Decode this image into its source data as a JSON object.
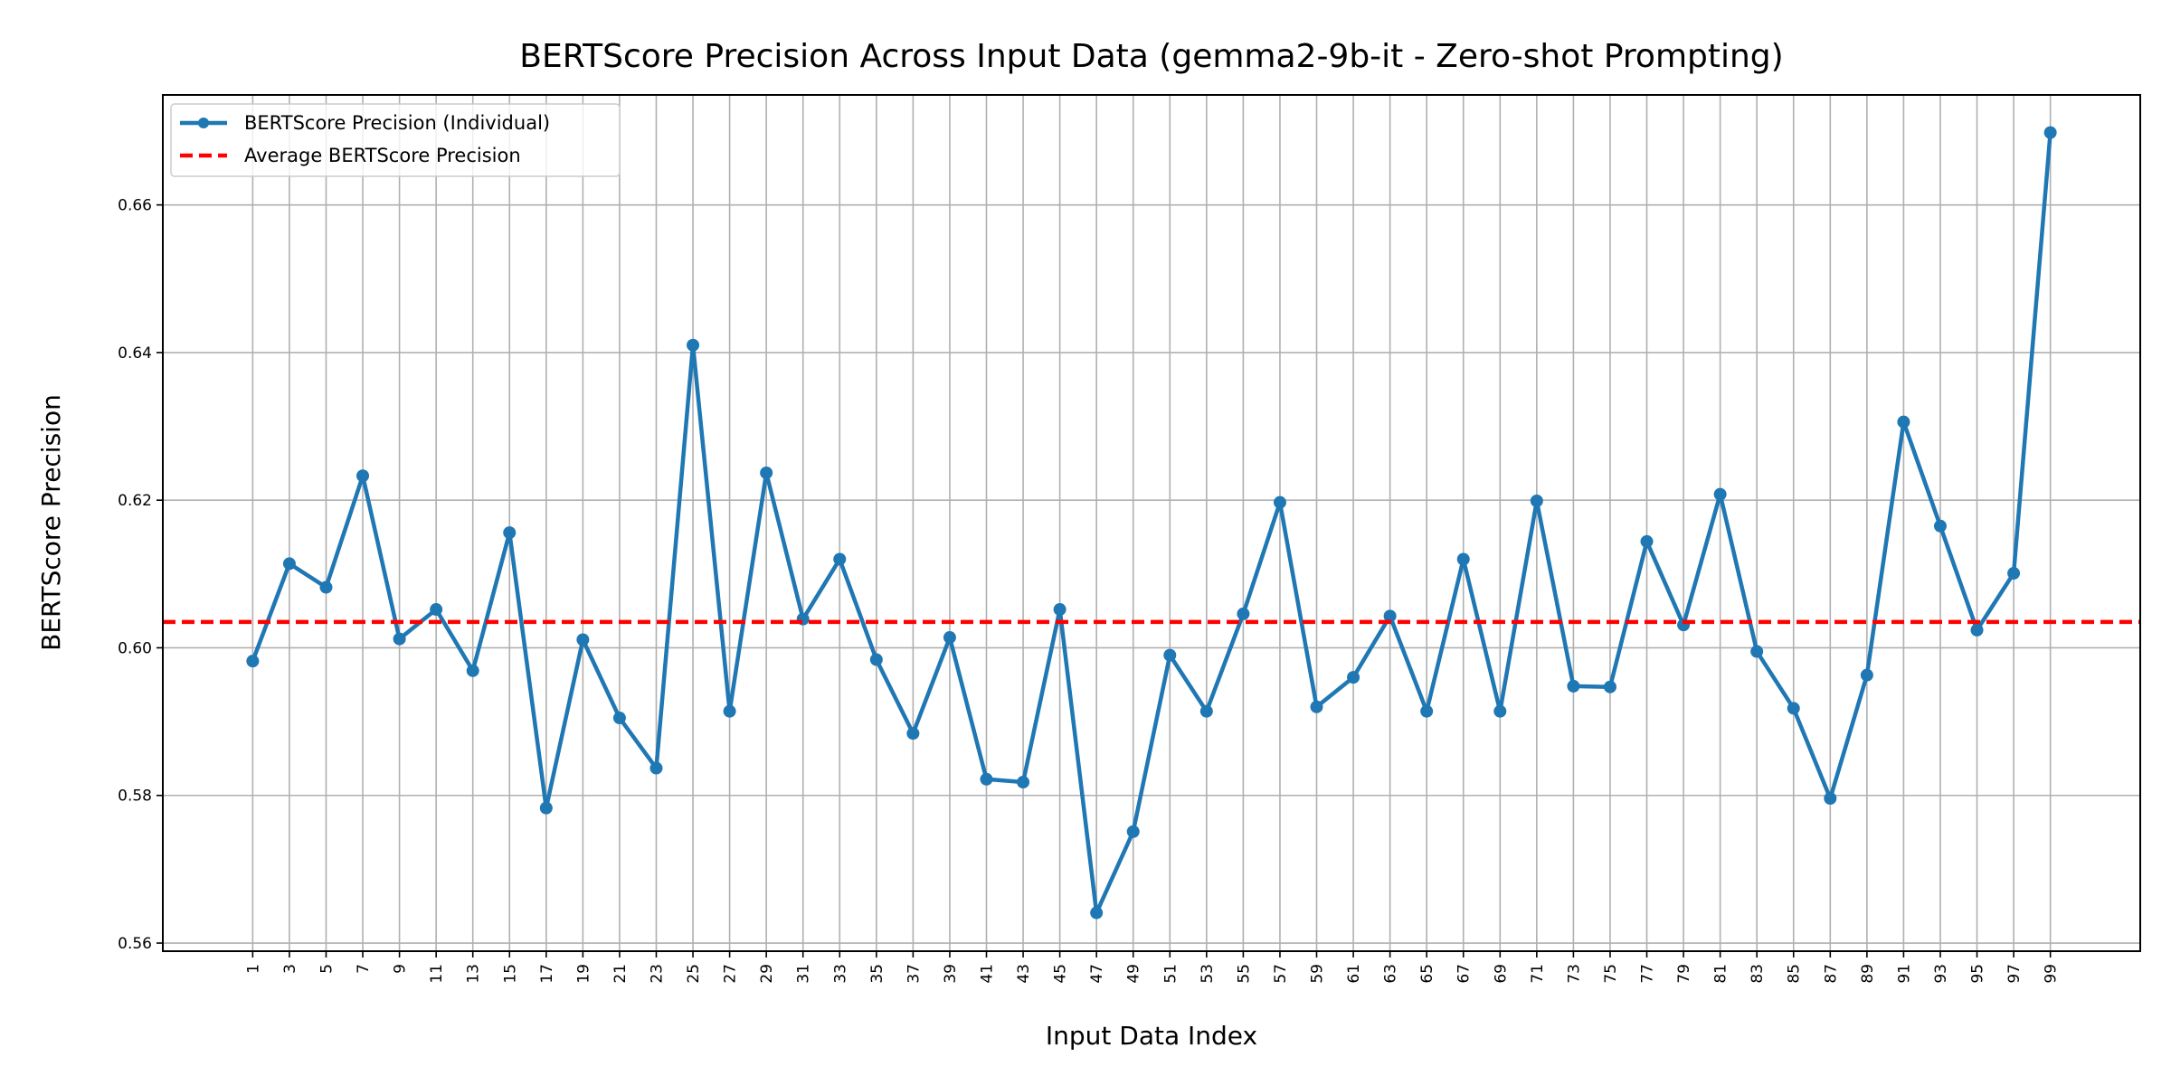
{
  "chart_data": {
    "type": "line",
    "title": "BERTScore Precision Across Input Data (gemma2-9b-it - Zero-shot Prompting)",
    "xlabel": "Input Data Index",
    "ylabel": "BERTScore Precision",
    "x": [
      1,
      3,
      5,
      7,
      9,
      11,
      13,
      15,
      17,
      19,
      21,
      23,
      25,
      27,
      29,
      31,
      33,
      35,
      37,
      39,
      41,
      43,
      45,
      47,
      49,
      51,
      53,
      55,
      57,
      59,
      61,
      63,
      65,
      67,
      69,
      71,
      73,
      75,
      77,
      79,
      81,
      83,
      85,
      87,
      89,
      91,
      93,
      95,
      97,
      99
    ],
    "series": [
      {
        "name": "BERTScore Precision (Individual)",
        "color": "#1f77b4",
        "values": [
          0.5982,
          0.6114,
          0.6082,
          0.6233,
          0.6012,
          0.6052,
          0.5969,
          0.6156,
          0.5783,
          0.6011,
          0.5905,
          0.5837,
          0.641,
          0.5914,
          0.6237,
          0.6039,
          0.612,
          0.5984,
          0.5884,
          0.6014,
          0.5822,
          0.5818,
          0.6052,
          0.5641,
          0.5751,
          0.599,
          0.5914,
          0.6046,
          0.6197,
          0.592,
          0.596,
          0.6043,
          0.5914,
          0.612,
          0.5914,
          0.6199,
          0.5948,
          0.5947,
          0.6144,
          0.6031,
          0.6208,
          0.5995,
          0.5918,
          0.5796,
          0.5963,
          0.6306,
          0.6165,
          0.6024,
          0.6101,
          0.6698
        ]
      }
    ],
    "average": {
      "name": "Average BERTScore Precision",
      "value": 0.6035,
      "color": "#ff0000"
    },
    "xlim": [
      -3.9,
      103.9
    ],
    "xticks": [
      1,
      3,
      5,
      7,
      9,
      11,
      13,
      15,
      17,
      19,
      21,
      23,
      25,
      27,
      29,
      31,
      33,
      35,
      37,
      39,
      41,
      43,
      45,
      47,
      49,
      51,
      53,
      55,
      57,
      59,
      61,
      63,
      65,
      67,
      69,
      71,
      73,
      75,
      77,
      79,
      81,
      83,
      85,
      87,
      89,
      91,
      93,
      95,
      97,
      99
    ],
    "ylim": [
      0.5589,
      0.6749
    ],
    "yticks": [
      {
        "value": 0.56,
        "label": "0.56"
      },
      {
        "value": 0.58,
        "label": "0.58"
      },
      {
        "value": 0.6,
        "label": "0.60"
      },
      {
        "value": 0.62,
        "label": "0.62"
      },
      {
        "value": 0.64,
        "label": "0.64"
      },
      {
        "value": 0.66,
        "label": "0.66"
      }
    ],
    "grid": true,
    "legend": "upper left"
  }
}
